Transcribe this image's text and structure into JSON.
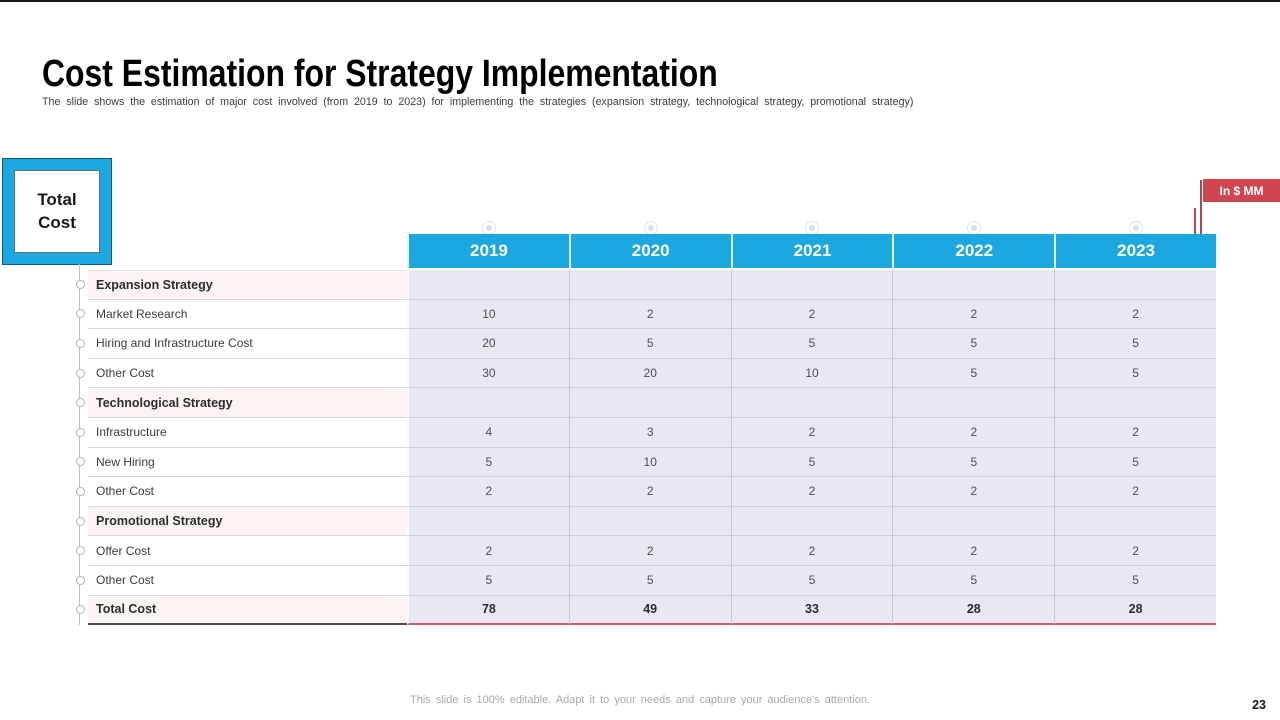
{
  "slide": {
    "title": "Cost Estimation for Strategy Implementation",
    "subtitle": "The slide shows the estimation of major cost involved (from 2019 to 2023) for implementing the strategies (expansion strategy, technological strategy, promotional strategy)",
    "footer_note": "This slide is 100% editable. Adapt it to your needs and capture your audience's attention.",
    "page_number": "23"
  },
  "total_cost_callout": {
    "label": "Total Cost"
  },
  "marker_badge": {
    "label": "In $ MM",
    "fill": "#cf4650"
  },
  "colors": {
    "header_fill": "#1ba7e0",
    "data_cell_fill": "#e7e8f3",
    "section_row_fill": "#fcf4f2",
    "badge_fill": "#cf4650",
    "total_underline": "#d05a6b"
  },
  "chart_data": {
    "type": "table",
    "title": "Cost Estimation for Strategy Implementation",
    "unit": "$ MM",
    "columns": [
      "2019",
      "2020",
      "2021",
      "2022",
      "2023"
    ],
    "rows": [
      {
        "label": "Expansion Strategy",
        "type": "section",
        "values": [
          "",
          "",
          "",
          "",
          ""
        ]
      },
      {
        "label": "Market Research",
        "type": "item",
        "values": [
          10,
          2,
          2,
          2,
          2
        ]
      },
      {
        "label": "Hiring and Infrastructure Cost",
        "type": "item",
        "values": [
          20,
          5,
          5,
          5,
          5
        ]
      },
      {
        "label": "Other Cost",
        "type": "item",
        "values": [
          30,
          20,
          10,
          5,
          5
        ]
      },
      {
        "label": "Technological Strategy",
        "type": "section",
        "values": [
          "",
          "",
          "",
          "",
          ""
        ]
      },
      {
        "label": "Infrastructure",
        "type": "item",
        "values": [
          4,
          3,
          2,
          2,
          2
        ]
      },
      {
        "label": "New Hiring",
        "type": "item",
        "values": [
          5,
          10,
          5,
          5,
          5
        ]
      },
      {
        "label": "Other Cost",
        "type": "item",
        "values": [
          2,
          2,
          2,
          2,
          2
        ]
      },
      {
        "label": "Promotional Strategy",
        "type": "section",
        "values": [
          "",
          "",
          "",
          "",
          ""
        ]
      },
      {
        "label": "Offer Cost",
        "type": "item",
        "values": [
          2,
          2,
          2,
          2,
          2
        ]
      },
      {
        "label": "Other Cost",
        "type": "item",
        "values": [
          5,
          5,
          5,
          5,
          5
        ]
      },
      {
        "label": "Total Cost",
        "type": "total",
        "values": [
          78,
          49,
          33,
          28,
          28
        ]
      }
    ]
  }
}
